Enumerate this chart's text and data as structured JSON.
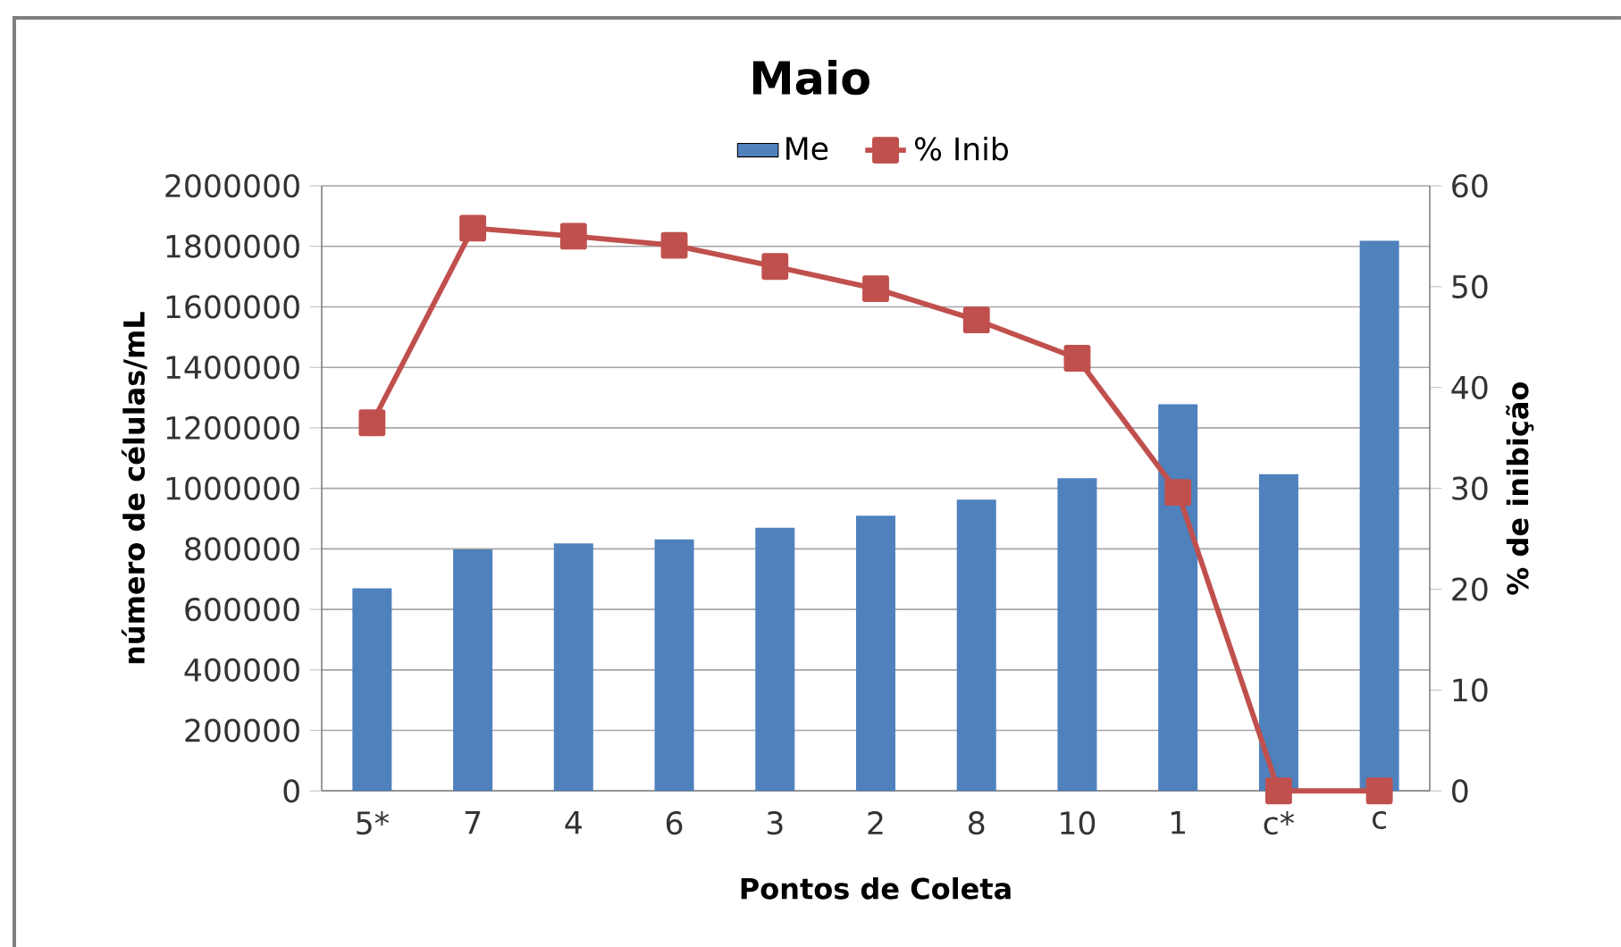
{
  "chart_data": {
    "type": "bar",
    "title": "Maio",
    "xlabel": "Pontos de Coleta",
    "ylabel": "número de células/mL",
    "y2label": "% de inibição",
    "categories": [
      "5*",
      "7",
      "4",
      "6",
      "3",
      "2",
      "8",
      "10",
      "1",
      "c*",
      "c"
    ],
    "series": [
      {
        "name": "Me",
        "color": "#4f81bd",
        "values": [
          670000,
          798000,
          818000,
          831000,
          870000,
          910000,
          963000,
          1034000,
          1278000,
          1047000,
          1818000
        ]
      },
      {
        "name": "% Inib",
        "type": "line",
        "axis": "y2",
        "color": "#c0504d",
        "marker": "square",
        "line_style": "solid",
        "values": [
          36.5,
          55.8,
          55.0,
          54.1,
          52.0,
          49.8,
          46.7,
          42.9,
          29.6,
          0,
          0
        ]
      }
    ],
    "ylim": [
      0,
      2000000
    ],
    "yticks": [
      0,
      200000,
      400000,
      600000,
      800000,
      1000000,
      1200000,
      1400000,
      1600000,
      1800000,
      2000000
    ],
    "y2lim": [
      0,
      60
    ],
    "y2ticks": [
      0,
      10,
      20,
      30,
      40,
      50,
      60
    ],
    "grid": "y",
    "legend": "top"
  }
}
